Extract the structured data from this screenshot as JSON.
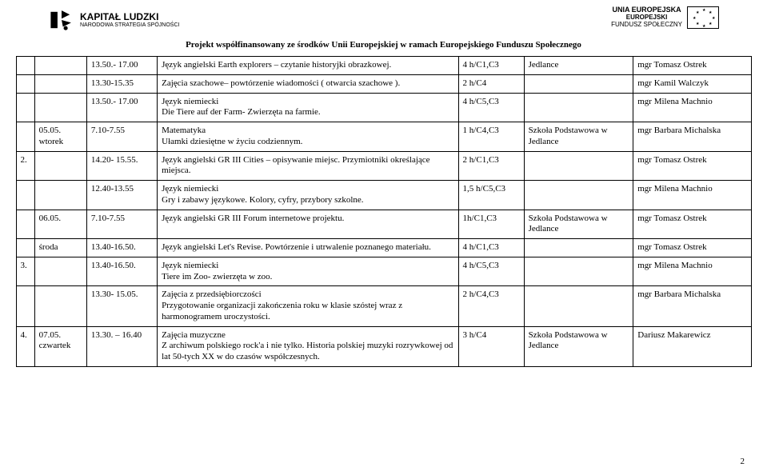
{
  "header": {
    "left_logo_title": "KAPITAŁ LUDZKI",
    "left_logo_sub": "NARODOWA STRATEGIA SPÓJNOŚCI",
    "right_line1": "UNIA EUROPEJSKA",
    "right_line2": "EUROPEJSKI",
    "right_line3": "FUNDUSZ SPOŁECZNY",
    "sub": "Projekt współfinansowany ze środków Unii Europejskiej w ramach Europejskiego Funduszu Społecznego"
  },
  "rows": [
    {
      "num": "",
      "day": "",
      "time": "13.50.- 17.00",
      "subject": "Język angielski Earth explorers – czytanie historyjki obrazkowej.",
      "hours": "4 h/C1,C3",
      "place": "Jedlance",
      "teacher": "mgr Tomasz Ostrek"
    },
    {
      "num": "",
      "day": "",
      "time": "13.30-15.35",
      "subject": "Zajęcia szachowe– powtórzenie wiadomości ( otwarcia szachowe ).",
      "hours": "2 h/C4",
      "place": "",
      "teacher": "mgr Kamil Walczyk"
    },
    {
      "num": "",
      "day": "",
      "time": "13.50.- 17.00",
      "subject": "Język niemiecki\nDie Tiere auf der Farm- Zwierzęta na farmie.",
      "hours": "4 h/C5,C3",
      "place": "",
      "teacher": "mgr Milena Machnio"
    },
    {
      "num": "",
      "day": "05.05.\nwtorek",
      "time": "7.10-7.55",
      "subject": "Matematyka\nUłamki dziesiętne w życiu codziennym.",
      "hours": "1 h/C4,C3",
      "place": "Szkoła Podstawowa w\nJedlance",
      "teacher": "mgr Barbara Michalska"
    },
    {
      "num": "2.",
      "day": "",
      "time": "14.20- 15.55.",
      "subject": "Język angielski GR III Cities – opisywanie miejsc. Przymiotniki określające miejsca.",
      "hours": "2 h/C1,C3",
      "place": "",
      "teacher": "mgr Tomasz Ostrek"
    },
    {
      "num": "",
      "day": "",
      "time": "12.40-13.55",
      "subject": "Język niemiecki\nGry i zabawy językowe. Kolory, cyfry, przybory szkolne.",
      "hours": "1,5 h/C5,C3",
      "place": "",
      "teacher": "mgr Milena Machnio"
    },
    {
      "num": "",
      "day": "06.05.",
      "time": "7.10-7.55",
      "subject": "Język angielski GR III Forum internetowe projektu.",
      "hours": "1h/C1,C3",
      "place": "Szkoła Podstawowa w\nJedlance",
      "teacher": "mgr Tomasz Ostrek"
    },
    {
      "num": "",
      "day": "środa",
      "time": "13.40-16.50.",
      "subject": "Język angielski Let's Revise. Powtórzenie i utrwalenie poznanego materiału.",
      "hours": "4 h/C1,C3",
      "place": "",
      "teacher": "mgr Tomasz Ostrek"
    },
    {
      "num": "3.",
      "day": "",
      "time": "13.40-16.50.",
      "subject": "Język niemiecki\nTiere im Zoo- zwierzęta w zoo.",
      "hours": "4 h/C5,C3",
      "place": "",
      "teacher": "mgr Milena Machnio"
    },
    {
      "num": "",
      "day": "",
      "time": "13.30- 15.05.",
      "subject": "Zajęcia z przedsiębiorczości\nPrzygotowanie organizacji zakończenia roku w klasie szóstej wraz z harmonogramem uroczystości.",
      "hours": "2 h/C4,C3",
      "place": "",
      "teacher": "mgr Barbara Michalska"
    },
    {
      "num": "4.",
      "day": "07.05.\nczwartek",
      "time": "13.30. – 16.40",
      "subject": "Zajęcia muzyczne\nZ archiwum polskiego rock'a i nie tylko. Historia polskiej muzyki rozrywkowej od lat 50-tych XX w do czasów współczesnych.",
      "hours": "3 h/C4",
      "place": "Szkoła Podstawowa w\nJedlance",
      "teacher": "Dariusz Makarewicz"
    }
  ],
  "page_number": "2"
}
